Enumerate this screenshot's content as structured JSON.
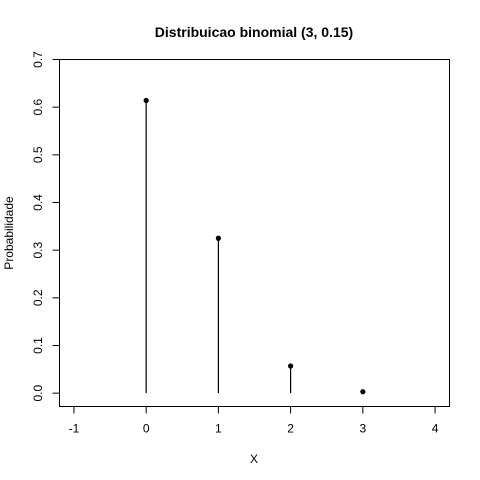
{
  "chart_data": {
    "type": "scatter",
    "title": "Distribuicao binomial (3, 0.15)",
    "xlabel": "X",
    "ylabel": "Probabilidade",
    "x": [
      0,
      1,
      2,
      3
    ],
    "y": [
      0.614,
      0.325,
      0.057,
      0.003
    ],
    "xlim": [
      -1.2,
      4.2
    ],
    "ylim": [
      -0.028,
      0.7
    ],
    "xticks": [
      -1,
      0,
      1,
      2,
      3,
      4
    ],
    "xtick_labels": [
      "-1",
      "0",
      "1",
      "2",
      "3",
      "4"
    ],
    "yticks": [
      0.0,
      0.1,
      0.2,
      0.3,
      0.4,
      0.5,
      0.6,
      0.7
    ],
    "ytick_labels": [
      "0.0",
      "0.1",
      "0.2",
      "0.3",
      "0.4",
      "0.5",
      "0.6",
      "0.7"
    ],
    "stems": true,
    "grid": false,
    "color": "#000000"
  }
}
